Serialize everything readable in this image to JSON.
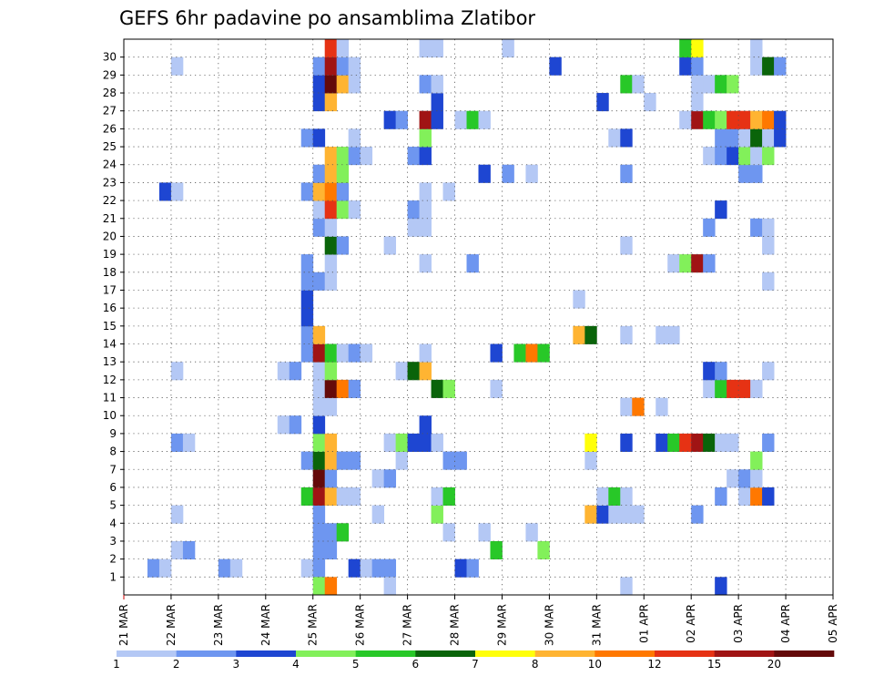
{
  "chart_data": {
    "type": "heatmap",
    "title": "GEFS 6hr padavine po ansamblima Zlatibor",
    "y_ticks": [
      "1",
      "2",
      "3",
      "4",
      "5",
      "6",
      "7",
      "8",
      "9",
      "10",
      "11",
      "12",
      "13",
      "14",
      "15",
      "16",
      "17",
      "18",
      "19",
      "20",
      "21",
      "22",
      "23",
      "24",
      "25",
      "26",
      "27",
      "28",
      "29",
      "30"
    ],
    "x_ticks": [
      "21 MAR",
      "22 MAR",
      "23 MAR",
      "24 MAR",
      "25 MAR",
      "26 MAR",
      "27 MAR",
      "28 MAR",
      "29 MAR",
      "30 MAR",
      "31 MAR",
      "01 APR",
      "02 APR",
      "03 APR",
      "04 APR",
      "05 APR"
    ],
    "colorbar": {
      "levels": [
        "1",
        "2",
        "3",
        "4",
        "5",
        "6",
        "7",
        "8",
        "10",
        "12",
        "15",
        "20"
      ],
      "colors": [
        "#b4c8f5",
        "#6e96f0",
        "#1e46d2",
        "#82f05a",
        "#28c828",
        "#0a640a",
        "#ffff0a",
        "#ffb432",
        "#ff7800",
        "#e63214",
        "#a01414",
        "#640a0a"
      ]
    },
    "cells": [
      [
        2,
        1,
        2
      ],
      [
        3,
        1,
        1
      ],
      [
        8,
        1,
        2
      ],
      [
        9,
        1,
        1
      ],
      [
        15,
        1,
        1
      ],
      [
        16,
        1,
        2
      ],
      [
        19,
        1,
        3
      ],
      [
        20,
        1,
        1
      ],
      [
        21,
        1,
        2
      ],
      [
        22,
        1,
        2
      ],
      [
        28,
        1,
        3
      ],
      [
        29,
        1,
        2
      ],
      [
        4,
        2,
        1
      ],
      [
        5,
        2,
        2
      ],
      [
        16,
        2,
        2
      ],
      [
        17,
        2,
        2
      ],
      [
        31,
        2,
        5
      ],
      [
        35,
        2,
        4
      ],
      [
        16,
        3,
        2
      ],
      [
        17,
        3,
        2
      ],
      [
        18,
        3,
        5
      ],
      [
        27,
        3,
        1
      ],
      [
        30,
        3,
        1
      ],
      [
        34,
        3,
        1
      ],
      [
        4,
        4,
        1
      ],
      [
        16,
        4,
        2
      ],
      [
        21,
        4,
        1
      ],
      [
        26,
        4,
        4
      ],
      [
        39,
        4,
        8
      ],
      [
        40,
        4,
        3
      ],
      [
        41,
        4,
        1
      ],
      [
        42,
        4,
        1
      ],
      [
        43,
        4,
        1
      ],
      [
        48,
        4,
        2
      ],
      [
        15,
        5,
        5
      ],
      [
        16,
        5,
        11
      ],
      [
        17,
        5,
        8
      ],
      [
        18,
        5,
        1
      ],
      [
        19,
        5,
        1
      ],
      [
        26,
        5,
        1
      ],
      [
        27,
        5,
        5
      ],
      [
        40,
        5,
        1
      ],
      [
        41,
        5,
        5
      ],
      [
        42,
        5,
        1
      ],
      [
        50,
        5,
        2
      ],
      [
        52,
        5,
        1
      ],
      [
        53,
        5,
        9
      ],
      [
        54,
        5,
        3
      ],
      [
        16,
        6,
        12
      ],
      [
        17,
        6,
        2
      ],
      [
        21,
        6,
        1
      ],
      [
        22,
        6,
        2
      ],
      [
        51,
        6,
        1
      ],
      [
        52,
        6,
        2
      ],
      [
        53,
        6,
        1
      ],
      [
        15,
        7,
        2
      ],
      [
        16,
        7,
        6
      ],
      [
        17,
        7,
        8
      ],
      [
        18,
        7,
        2
      ],
      [
        19,
        7,
        2
      ],
      [
        23,
        7,
        1
      ],
      [
        27,
        7,
        2
      ],
      [
        28,
        7,
        2
      ],
      [
        39,
        7,
        1
      ],
      [
        53,
        7,
        4
      ],
      [
        4,
        8,
        2
      ],
      [
        5,
        8,
        1
      ],
      [
        16,
        8,
        4
      ],
      [
        17,
        8,
        8
      ],
      [
        22,
        8,
        1
      ],
      [
        23,
        8,
        4
      ],
      [
        24,
        8,
        3
      ],
      [
        25,
        8,
        3
      ],
      [
        26,
        8,
        1
      ],
      [
        39,
        8,
        7
      ],
      [
        42,
        8,
        3
      ],
      [
        45,
        8,
        3
      ],
      [
        46,
        8,
        5
      ],
      [
        47,
        8,
        10
      ],
      [
        48,
        8,
        11
      ],
      [
        49,
        8,
        6
      ],
      [
        50,
        8,
        1
      ],
      [
        51,
        8,
        1
      ],
      [
        54,
        8,
        2
      ],
      [
        13,
        9,
        1
      ],
      [
        14,
        9,
        2
      ],
      [
        16,
        9,
        3
      ],
      [
        25,
        9,
        3
      ],
      [
        16,
        10,
        1
      ],
      [
        17,
        10,
        1
      ],
      [
        42,
        10,
        1
      ],
      [
        43,
        10,
        9
      ],
      [
        45,
        10,
        1
      ],
      [
        16,
        11,
        1
      ],
      [
        17,
        11,
        12
      ],
      [
        18,
        11,
        9
      ],
      [
        19,
        11,
        2
      ],
      [
        26,
        11,
        6
      ],
      [
        27,
        11,
        4
      ],
      [
        31,
        11,
        1
      ],
      [
        49,
        11,
        1
      ],
      [
        50,
        11,
        5
      ],
      [
        51,
        11,
        10
      ],
      [
        52,
        11,
        10
      ],
      [
        53,
        11,
        1
      ],
      [
        4,
        12,
        1
      ],
      [
        13,
        12,
        1
      ],
      [
        14,
        12,
        2
      ],
      [
        16,
        12,
        1
      ],
      [
        17,
        12,
        4
      ],
      [
        23,
        12,
        1
      ],
      [
        24,
        12,
        6
      ],
      [
        25,
        12,
        8
      ],
      [
        49,
        12,
        3
      ],
      [
        50,
        12,
        2
      ],
      [
        54,
        12,
        1
      ],
      [
        15,
        13,
        2
      ],
      [
        16,
        13,
        11
      ],
      [
        17,
        13,
        5
      ],
      [
        18,
        13,
        1
      ],
      [
        19,
        13,
        2
      ],
      [
        20,
        13,
        1
      ],
      [
        25,
        13,
        1
      ],
      [
        31,
        13,
        3
      ],
      [
        33,
        13,
        5
      ],
      [
        34,
        13,
        9
      ],
      [
        35,
        13,
        5
      ],
      [
        15,
        14,
        2
      ],
      [
        16,
        14,
        8
      ],
      [
        38,
        14,
        8
      ],
      [
        39,
        14,
        6
      ],
      [
        42,
        14,
        1
      ],
      [
        45,
        14,
        1
      ],
      [
        46,
        14,
        1
      ],
      [
        15,
        15,
        3
      ],
      [
        15,
        16,
        3
      ],
      [
        38,
        16,
        1
      ],
      [
        15,
        17,
        2
      ],
      [
        16,
        17,
        2
      ],
      [
        17,
        17,
        1
      ],
      [
        54,
        17,
        1
      ],
      [
        15,
        18,
        2
      ],
      [
        17,
        18,
        1
      ],
      [
        25,
        18,
        1
      ],
      [
        29,
        18,
        2
      ],
      [
        46,
        18,
        1
      ],
      [
        47,
        18,
        4
      ],
      [
        48,
        18,
        11
      ],
      [
        49,
        18,
        2
      ],
      [
        17,
        19,
        6
      ],
      [
        18,
        19,
        2
      ],
      [
        22,
        19,
        1
      ],
      [
        42,
        19,
        1
      ],
      [
        54,
        19,
        1
      ],
      [
        16,
        20,
        2
      ],
      [
        17,
        20,
        1
      ],
      [
        24,
        20,
        1
      ],
      [
        25,
        20,
        1
      ],
      [
        49,
        20,
        2
      ],
      [
        53,
        20,
        2
      ],
      [
        54,
        20,
        1
      ],
      [
        16,
        21,
        1
      ],
      [
        17,
        21,
        10
      ],
      [
        18,
        21,
        4
      ],
      [
        19,
        21,
        1
      ],
      [
        24,
        21,
        2
      ],
      [
        25,
        21,
        1
      ],
      [
        50,
        21,
        3
      ],
      [
        3,
        22,
        3
      ],
      [
        4,
        22,
        1
      ],
      [
        15,
        22,
        2
      ],
      [
        16,
        22,
        8
      ],
      [
        17,
        22,
        9
      ],
      [
        18,
        22,
        2
      ],
      [
        25,
        22,
        1
      ],
      [
        27,
        22,
        1
      ],
      [
        16,
        23,
        2
      ],
      [
        17,
        23,
        8
      ],
      [
        18,
        23,
        4
      ],
      [
        30,
        23,
        3
      ],
      [
        32,
        23,
        2
      ],
      [
        34,
        23,
        1
      ],
      [
        42,
        23,
        2
      ],
      [
        52,
        23,
        2
      ],
      [
        53,
        23,
        2
      ],
      [
        17,
        24,
        8
      ],
      [
        18,
        24,
        4
      ],
      [
        19,
        24,
        2
      ],
      [
        20,
        24,
        1
      ],
      [
        24,
        24,
        2
      ],
      [
        25,
        24,
        3
      ],
      [
        49,
        24,
        1
      ],
      [
        50,
        24,
        2
      ],
      [
        51,
        24,
        3
      ],
      [
        52,
        24,
        4
      ],
      [
        53,
        24,
        1
      ],
      [
        54,
        24,
        4
      ],
      [
        15,
        25,
        2
      ],
      [
        16,
        25,
        3
      ],
      [
        19,
        25,
        1
      ],
      [
        25,
        25,
        4
      ],
      [
        41,
        25,
        1
      ],
      [
        42,
        25,
        3
      ],
      [
        50,
        25,
        2
      ],
      [
        51,
        25,
        2
      ],
      [
        52,
        25,
        1
      ],
      [
        53,
        25,
        6
      ],
      [
        54,
        25,
        1
      ],
      [
        55,
        25,
        3
      ],
      [
        22,
        26,
        3
      ],
      [
        23,
        26,
        2
      ],
      [
        25,
        26,
        11
      ],
      [
        26,
        26,
        3
      ],
      [
        28,
        26,
        1
      ],
      [
        29,
        26,
        5
      ],
      [
        30,
        26,
        1
      ],
      [
        47,
        26,
        1
      ],
      [
        48,
        26,
        11
      ],
      [
        49,
        26,
        5
      ],
      [
        50,
        26,
        4
      ],
      [
        51,
        26,
        10
      ],
      [
        52,
        26,
        10
      ],
      [
        53,
        26,
        8
      ],
      [
        54,
        26,
        9
      ],
      [
        55,
        26,
        3
      ],
      [
        16,
        27,
        3
      ],
      [
        17,
        27,
        8
      ],
      [
        26,
        27,
        3
      ],
      [
        40,
        27,
        3
      ],
      [
        44,
        27,
        1
      ],
      [
        48,
        27,
        1
      ],
      [
        16,
        28,
        3
      ],
      [
        17,
        28,
        12
      ],
      [
        18,
        28,
        8
      ],
      [
        19,
        28,
        1
      ],
      [
        25,
        28,
        2
      ],
      [
        26,
        28,
        1
      ],
      [
        42,
        28,
        5
      ],
      [
        43,
        28,
        1
      ],
      [
        48,
        28,
        1
      ],
      [
        49,
        28,
        1
      ],
      [
        50,
        28,
        5
      ],
      [
        51,
        28,
        4
      ],
      [
        4,
        29,
        1
      ],
      [
        16,
        29,
        2
      ],
      [
        17,
        29,
        11
      ],
      [
        18,
        29,
        2
      ],
      [
        19,
        29,
        1
      ],
      [
        36,
        29,
        3
      ],
      [
        47,
        29,
        3
      ],
      [
        48,
        29,
        2
      ],
      [
        53,
        29,
        1
      ],
      [
        54,
        29,
        6
      ],
      [
        55,
        29,
        2
      ],
      [
        17,
        30,
        10
      ],
      [
        18,
        30,
        1
      ],
      [
        25,
        30,
        1
      ],
      [
        26,
        30,
        1
      ],
      [
        32,
        30,
        1
      ],
      [
        47,
        30,
        5
      ],
      [
        48,
        30,
        7
      ],
      [
        53,
        30,
        1
      ],
      [
        16,
        0,
        4
      ],
      [
        17,
        0,
        9
      ],
      [
        22,
        0,
        1
      ],
      [
        42,
        0,
        1
      ],
      [
        50,
        0,
        3
      ]
    ]
  }
}
